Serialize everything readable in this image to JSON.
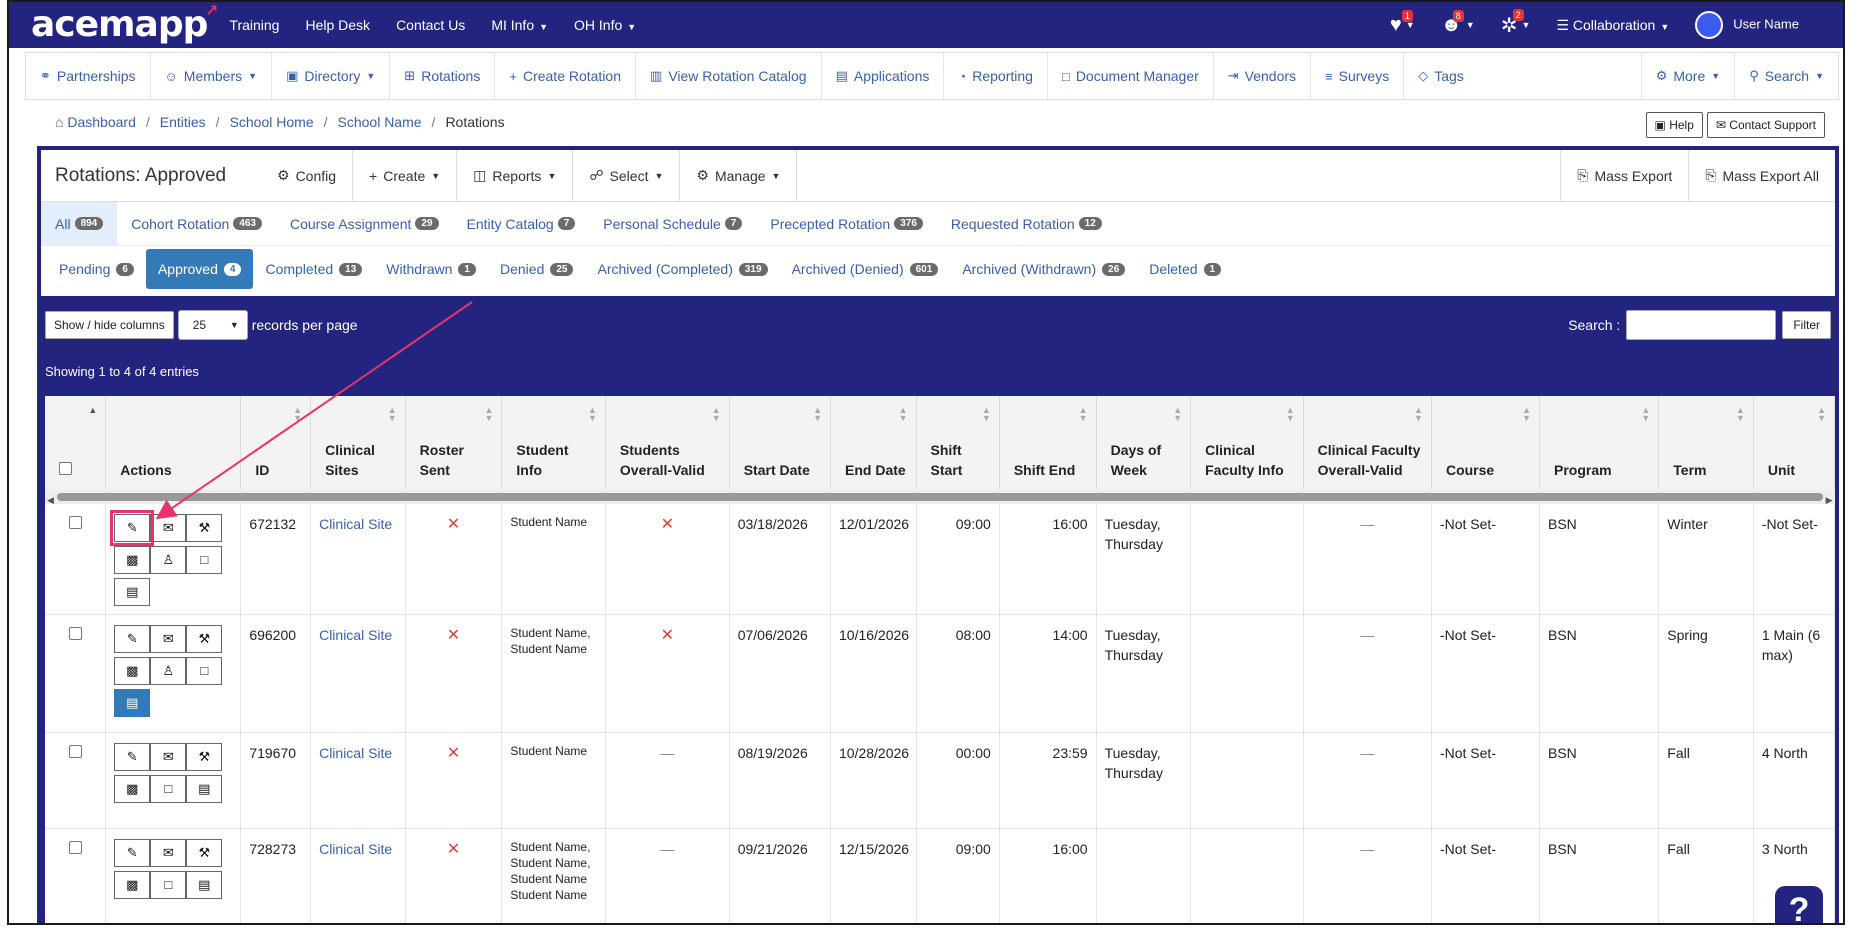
{
  "topnav": {
    "logo": "acemapp",
    "items": [
      {
        "label": "Training",
        "caret": false
      },
      {
        "label": "Help Desk",
        "caret": false
      },
      {
        "label": "Contact Us",
        "caret": false
      },
      {
        "label": "MI Info",
        "caret": true
      },
      {
        "label": "OH Info",
        "caret": true
      }
    ],
    "badges": {
      "messages": "1",
      "users": "8",
      "broadcast": "2"
    },
    "collaboration": "Collaboration",
    "user": "User Name"
  },
  "subnav": {
    "items": [
      {
        "label": "Partnerships",
        "icon": "⚭",
        "caret": false
      },
      {
        "label": "Members",
        "icon": "☺",
        "caret": true
      },
      {
        "label": "Directory",
        "icon": "▣",
        "caret": true
      },
      {
        "label": "Rotations",
        "icon": "⊞",
        "caret": false
      },
      {
        "label": "Create Rotation",
        "icon": "+",
        "caret": false
      },
      {
        "label": "View Rotation Catalog",
        "icon": "▥",
        "caret": false
      },
      {
        "label": "Applications",
        "icon": "▤",
        "caret": false
      },
      {
        "label": "Reporting",
        "icon": "◔",
        "caret": false
      },
      {
        "label": "Document Manager",
        "icon": "□",
        "caret": false
      },
      {
        "label": "Vendors",
        "icon": "⇥",
        "caret": false
      },
      {
        "label": "Surveys",
        "icon": "≡",
        "caret": false
      },
      {
        "label": "Tags",
        "icon": "◇",
        "caret": false
      }
    ],
    "more": "More",
    "search": "Search"
  },
  "breadcrumb": [
    "Dashboard",
    "Entities",
    "School Home",
    "School Name",
    "Rotations"
  ],
  "help": {
    "help": "Help",
    "support": "Contact Support"
  },
  "panel": {
    "title": "Rotations: Approved",
    "buttons": [
      "Config",
      "Create",
      "Reports",
      "Select",
      "Manage"
    ],
    "export": "Mass Export",
    "export_all": "Mass Export All"
  },
  "types": [
    {
      "label": "All",
      "count": "894"
    },
    {
      "label": "Cohort Rotation",
      "count": "463"
    },
    {
      "label": "Course Assignment",
      "count": "29"
    },
    {
      "label": "Entity Catalog",
      "count": "7"
    },
    {
      "label": "Personal Schedule",
      "count": "7"
    },
    {
      "label": "Precepted Rotation",
      "count": "376"
    },
    {
      "label": "Requested Rotation",
      "count": "12"
    }
  ],
  "statuses": [
    {
      "label": "Pending",
      "count": "6"
    },
    {
      "label": "Approved",
      "count": "4"
    },
    {
      "label": "Completed",
      "count": "13"
    },
    {
      "label": "Withdrawn",
      "count": "1"
    },
    {
      "label": "Denied",
      "count": "25"
    },
    {
      "label": "Archived (Completed)",
      "count": "319"
    },
    {
      "label": "Archived (Denied)",
      "count": "601"
    },
    {
      "label": "Archived (Withdrawn)",
      "count": "26"
    },
    {
      "label": "Deleted",
      "count": "1"
    }
  ],
  "table_controls": {
    "show_hide": "Show / hide columns",
    "per_page": "25",
    "per_page_label": "records per page",
    "search_label": "Search :",
    "filter": "Filter",
    "showing": "Showing 1 to 4 of 4 entries"
  },
  "columns": [
    "Actions",
    "ID",
    "Clinical Sites",
    "Roster Sent",
    "Student Info",
    "Students Overall-Valid",
    "Start Date",
    "End Date",
    "Shift Start",
    "Shift End",
    "Days of Week",
    "Clinical Faculty Info",
    "Clinical Faculty Overall-Valid",
    "Course",
    "Program",
    "Term",
    "Unit"
  ],
  "rows": [
    {
      "id": "672132",
      "site": "Clinical Site",
      "student": "Student Name",
      "start": "03/18/2026",
      "end": "12/01/2026",
      "shift_start": "09:00",
      "shift_end": "16:00",
      "days": "Tuesday, Thursday",
      "valid": "x",
      "course": "-Not Set-",
      "program": "BSN",
      "term": "Winter",
      "unit": "-Not Set-"
    },
    {
      "id": "696200",
      "site": "Clinical Site",
      "student": "Student Name, Student Name",
      "start": "07/06/2026",
      "end": "10/16/2026",
      "shift_start": "08:00",
      "shift_end": "14:00",
      "days": "Tuesday, Thursday",
      "valid": "x",
      "course": "-Not Set-",
      "program": "BSN",
      "term": "Spring",
      "unit": "1 Main (6 max)"
    },
    {
      "id": "719670",
      "site": "Clinical Site",
      "student": "Student Name",
      "start": "08/19/2026",
      "end": "10/28/2026",
      "shift_start": "00:00",
      "shift_end": "23:59",
      "days": "Tuesday, Thursday",
      "valid": "-",
      "course": "-Not Set-",
      "program": "BSN",
      "term": "Fall",
      "unit": "4 North"
    },
    {
      "id": "728273",
      "site": "Clinical Site",
      "student": "Student Name, Student Name, Student Name Student Name",
      "start": "09/21/2026",
      "end": "12/15/2026",
      "shift_start": "09:00",
      "shift_end": "16:00",
      "days": "",
      "valid": "-",
      "course": "-Not Set-",
      "program": "BSN",
      "term": "Fall",
      "unit": "3 North"
    }
  ],
  "help_fab": "?"
}
